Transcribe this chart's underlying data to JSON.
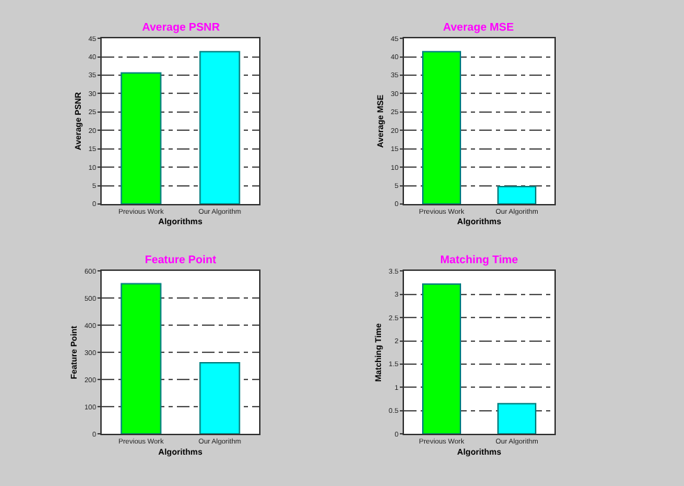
{
  "chart_data": [
    {
      "type": "bar",
      "title": "Average PSNR",
      "xlabel": "Algorithms",
      "ylabel": "Average PSNR",
      "categories": [
        "Previous Work",
        "Our Algorithm"
      ],
      "values": [
        35.6,
        41.4
      ],
      "colors": [
        "#00ff00",
        "#00ffff"
      ],
      "ylim": [
        0,
        45
      ],
      "yticks": [
        0,
        5,
        10,
        15,
        20,
        25,
        30,
        35,
        40,
        45
      ],
      "grid": "y"
    },
    {
      "type": "bar",
      "title": "Average MSE",
      "xlabel": "Algorithms",
      "ylabel": "Average MSE",
      "categories": [
        "Previous Work",
        "Our Algorithm"
      ],
      "values": [
        41.4,
        4.7
      ],
      "colors": [
        "#00ff00",
        "#00ffff"
      ],
      "ylim": [
        0,
        45
      ],
      "yticks": [
        0,
        5,
        10,
        15,
        20,
        25,
        30,
        35,
        40,
        45
      ],
      "grid": "y"
    },
    {
      "type": "bar",
      "title": "Feature Point",
      "xlabel": "Algorithms",
      "ylabel": "Feature Point",
      "categories": [
        "Previous Work",
        "Our Algorithm"
      ],
      "values": [
        553,
        262
      ],
      "colors": [
        "#00ff00",
        "#00ffff"
      ],
      "ylim": [
        0,
        600
      ],
      "yticks": [
        0,
        100,
        200,
        300,
        400,
        500,
        600
      ],
      "grid": "y"
    },
    {
      "type": "bar",
      "title": "Matching Time",
      "xlabel": "Algorithms",
      "ylabel": "Matching Time",
      "categories": [
        "Previous Work",
        "Our Algorithm"
      ],
      "values": [
        3.22,
        0.65
      ],
      "colors": [
        "#00ff00",
        "#00ffff"
      ],
      "ylim": [
        0,
        3.5
      ],
      "yticks": [
        0,
        0.5,
        1,
        1.5,
        2,
        2.5,
        3,
        3.5
      ],
      "grid": "y"
    }
  ]
}
